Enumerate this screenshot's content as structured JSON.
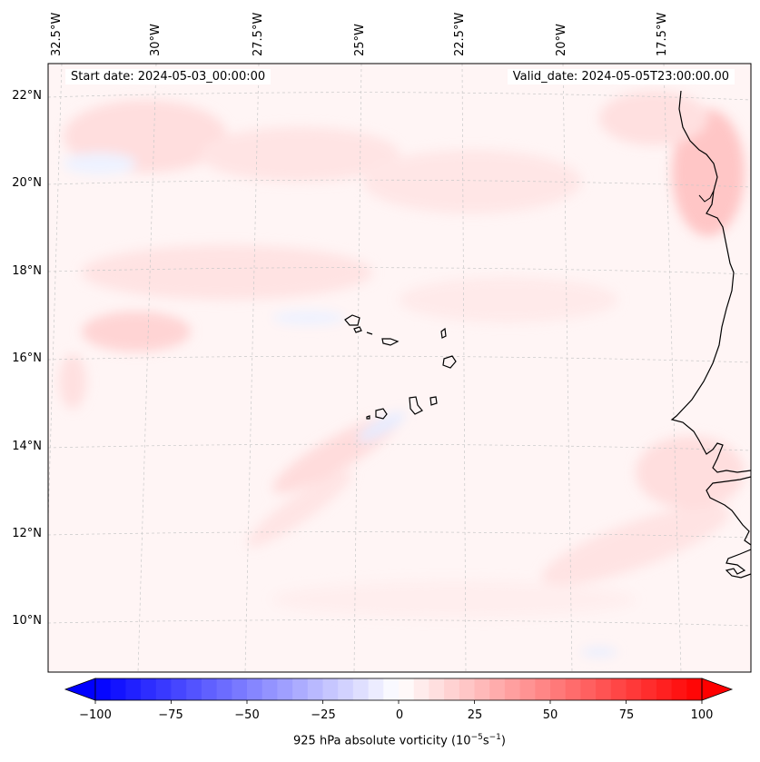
{
  "map": {
    "start_date": "Start date: 2024-05-03_00:00:00",
    "valid_date": "Valid_date: 2024-05-05T23:00:00.00",
    "lon_labels": [
      "32.5°W",
      "30°W",
      "27.5°W",
      "25°W",
      "22.5°W",
      "20°W",
      "17.5°W"
    ],
    "lat_labels": [
      "22°N",
      "20°N",
      "18°N",
      "16°N",
      "14°N",
      "12°N",
      "10°N"
    ],
    "coast_color": "#000000",
    "grid_color": "#c8c8c8"
  },
  "colorbar": {
    "ticks": [
      "−100",
      "−75",
      "−50",
      "−25",
      "0",
      "25",
      "50",
      "75",
      "100"
    ],
    "label_main": "925 hPa absolute vorticity (10",
    "label_exp1": "−5",
    "label_mid": "s",
    "label_exp2": "−1",
    "label_end": ")",
    "min_color": "#0000ff",
    "mid_color": "#ffffff",
    "max_color": "#ff0000"
  }
}
